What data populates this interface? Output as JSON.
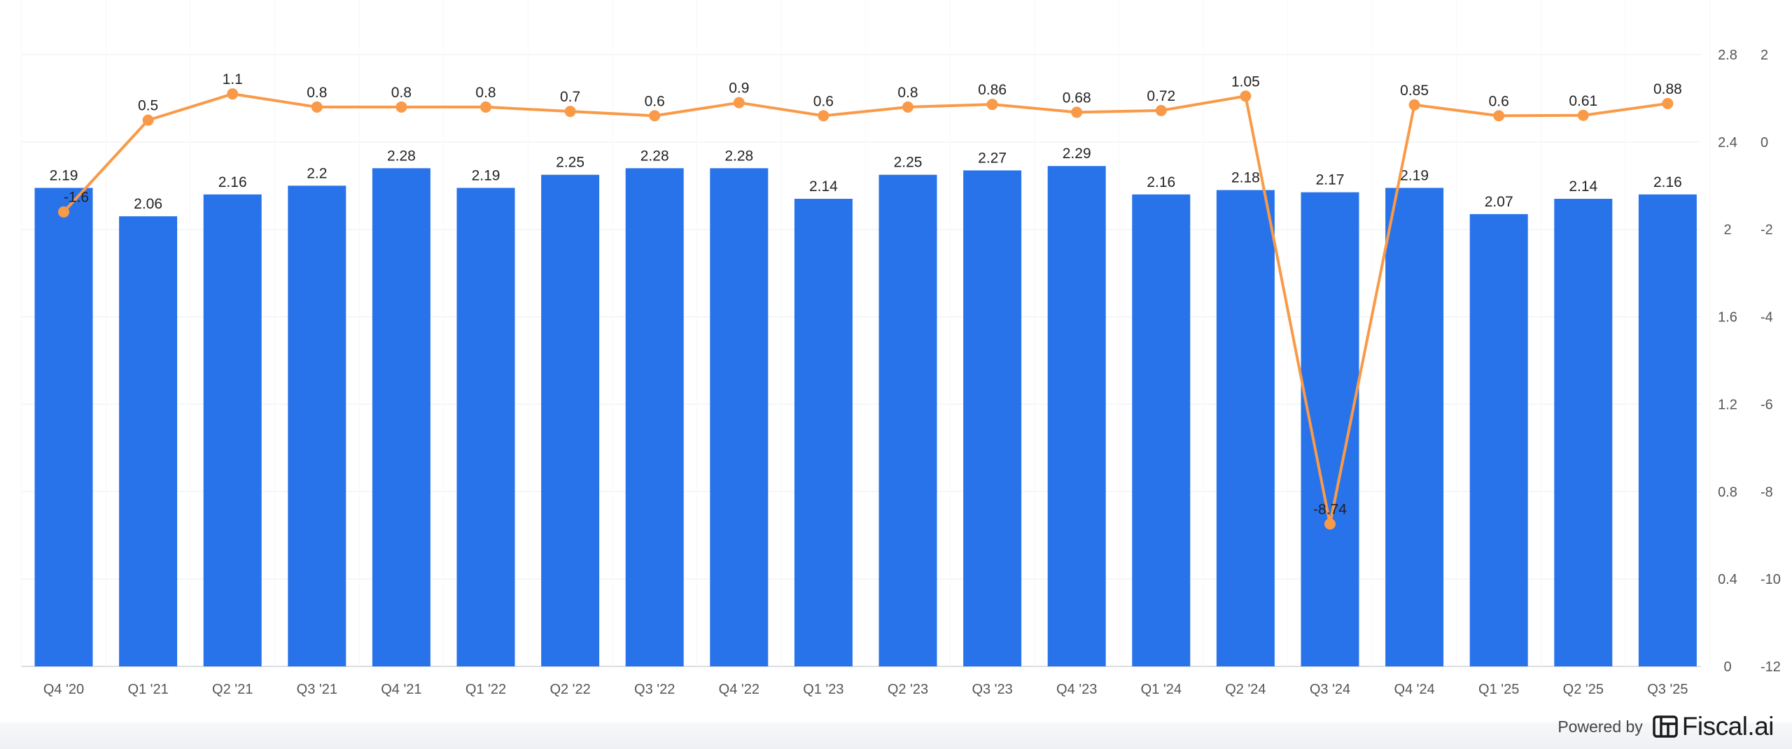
{
  "chart_data": {
    "type": "bar",
    "categories": [
      "Q4 '20",
      "Q1 '21",
      "Q2 '21",
      "Q3 '21",
      "Q4 '21",
      "Q1 '22",
      "Q2 '22",
      "Q3 '22",
      "Q4 '22",
      "Q1 '23",
      "Q2 '23",
      "Q3 '23",
      "Q4 '23",
      "Q1 '24",
      "Q2 '24",
      "Q3 '24",
      "Q4 '24",
      "Q1 '25",
      "Q2 '25",
      "Q3 '25"
    ],
    "series": [
      {
        "type": "bar",
        "axis": "left",
        "color": "#2873ea",
        "values": [
          2.19,
          2.06,
          2.16,
          2.2,
          2.28,
          2.19,
          2.25,
          2.28,
          2.28,
          2.14,
          2.25,
          2.27,
          2.29,
          2.16,
          2.18,
          2.17,
          2.19,
          2.07,
          2.14,
          2.16
        ],
        "labels": [
          "2.19",
          "2.06",
          "2.16",
          "2.2",
          "2.28",
          "2.19",
          "2.25",
          "2.28",
          "2.28",
          "2.14",
          "2.25",
          "2.27",
          "2.29",
          "2.16",
          "2.18",
          "2.17",
          "2.19",
          "2.07",
          "2.14",
          "2.16"
        ]
      },
      {
        "type": "line",
        "axis": "right",
        "color": "#f99a48",
        "values": [
          -1.6,
          0.5,
          1.1,
          0.8,
          0.8,
          0.8,
          0.7,
          0.6,
          0.9,
          0.6,
          0.8,
          0.86,
          0.68,
          0.72,
          1.05,
          -8.74,
          0.85,
          0.6,
          0.61,
          0.88
        ],
        "labels": [
          "-1.6",
          "0.5",
          "1.1",
          "0.8",
          "0.8",
          "0.8",
          "0.7",
          "0.6",
          "0.9",
          "0.6",
          "0.8",
          "0.86",
          "0.68",
          "0.72",
          "1.05",
          "-8.74",
          "0.85",
          "0.6",
          "0.61",
          "0.88"
        ]
      }
    ],
    "left_axis": {
      "ylim": [
        0,
        2.8
      ],
      "ticks": [
        "0",
        "0.4",
        "0.8",
        "1.2",
        "1.6",
        "2",
        "2.4",
        "2.8"
      ]
    },
    "right_axis": {
      "ylim": [
        -12,
        2
      ],
      "ticks": [
        "-12",
        "-10",
        "-8",
        "-6",
        "-4",
        "-2",
        "0",
        "2"
      ]
    },
    "grid": true,
    "title": "",
    "xlabel": "",
    "ylabel": ""
  },
  "footer": {
    "powered_by": "Powered by",
    "brand_name": "Fiscal.ai"
  }
}
